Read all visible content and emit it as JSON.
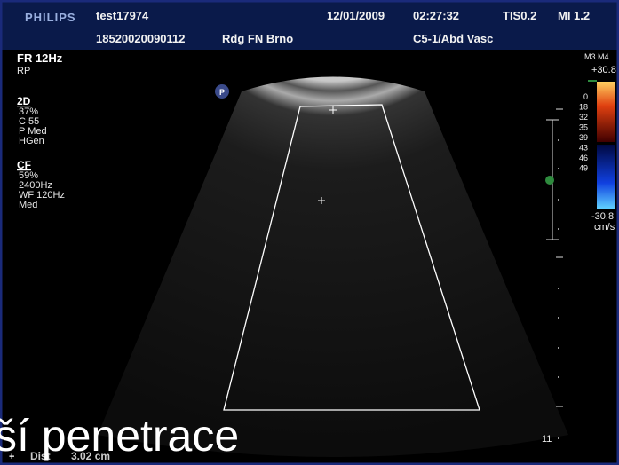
{
  "header": {
    "brand": "PHILIPS",
    "patient": "test17974",
    "patient_id": "18520020090112",
    "institution": "Rdg FN Brno",
    "date": "12/01/2009",
    "time": "02:27:32",
    "tis": "TIS0.2",
    "mi": "MI 1.2",
    "probe": "C5-1/Abd Vasc"
  },
  "left_panel": {
    "frame_rate": "FR 12Hz",
    "mode": "RP",
    "section_2d": {
      "title": "2D",
      "lines": [
        "37%",
        "C 55",
        "P Med",
        "HGen"
      ]
    },
    "section_cf": {
      "title": "CF",
      "lines": [
        "59%",
        "2400Hz",
        "WF 120Hz",
        "Med"
      ]
    }
  },
  "color_bar": {
    "map": "M3 M4",
    "top": "+30.8",
    "scale": [
      "0",
      "18",
      "32",
      "35",
      "39",
      "43",
      "46",
      "49"
    ],
    "bottom": "-30.8",
    "unit": "cm/s"
  },
  "marker": "P",
  "depth_label": "11",
  "measurement": {
    "label": "Dist",
    "value": "3.02 cm"
  },
  "caption": "ší penetrace"
}
